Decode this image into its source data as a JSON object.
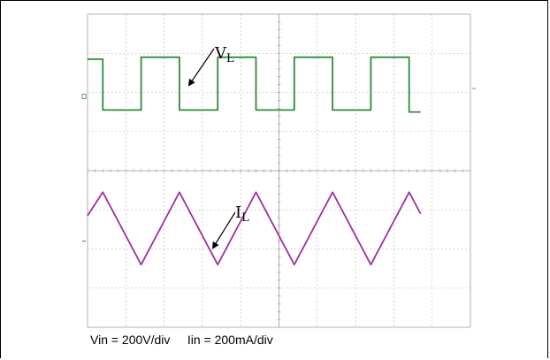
{
  "caption": "Vin = 200V/div     Iin = 200mA/div",
  "chart_data": {
    "type": "line",
    "grid": true,
    "divisions": {
      "x": 10,
      "y": 8
    },
    "series": [
      {
        "name": "VL",
        "label_main": "V",
        "label_sub": "L",
        "color": "#2e8b3a",
        "unit": "div",
        "x": [
          0,
          0.2,
          0.2,
          0.7,
          0.7,
          1.2,
          1.2,
          1.7,
          1.7,
          2.2,
          2.2,
          2.7,
          2.7,
          3.2,
          3.2,
          3.7,
          3.7,
          4.2,
          4.2,
          4.35
        ],
        "y": [
          6.85,
          6.85,
          5.55,
          5.55,
          6.9,
          6.9,
          5.55,
          5.55,
          6.9,
          6.9,
          5.55,
          5.55,
          6.9,
          6.9,
          5.55,
          5.55,
          6.9,
          6.9,
          5.5,
          5.5
        ]
      },
      {
        "name": "IL",
        "label_main": "I",
        "label_sub": "L",
        "color": "#a0309f",
        "unit": "div",
        "x": [
          0,
          0.2,
          0.7,
          1.2,
          1.7,
          2.2,
          2.7,
          3.2,
          3.7,
          4.2,
          4.35
        ],
        "y": [
          2.85,
          3.45,
          1.6,
          3.45,
          1.6,
          3.45,
          1.6,
          3.45,
          1.6,
          3.45,
          2.9
        ]
      }
    ],
    "annotations": [
      {
        "target": "VL",
        "text": "VL"
      },
      {
        "target": "IL",
        "text": "IL"
      }
    ]
  }
}
